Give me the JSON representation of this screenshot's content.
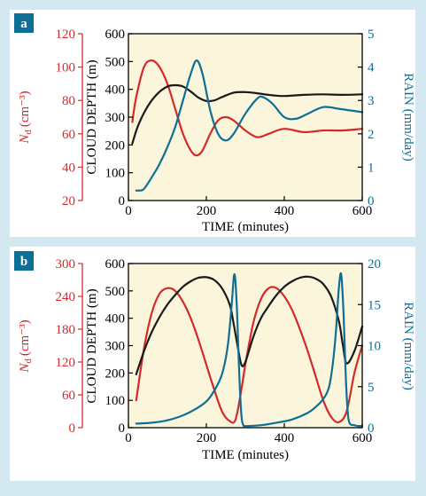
{
  "colors": {
    "nd": "#d42a2a",
    "depth": "#1a1a1a",
    "rain": "#0e6f96",
    "badge": "#0e6f96",
    "plot_bg": "#fbf5dc",
    "page_bg": "#d4e8f2"
  },
  "chart_data": [
    {
      "panel_label": "a",
      "type": "line",
      "xlabel": "TIME (minutes)",
      "ylabel_left_outer_italic": "N",
      "ylabel_left_outer_sub": "d",
      "ylabel_left_outer_unit": "(cm⁻³)",
      "ylabel_left_inner": "CLOUD DEPTH (m)",
      "ylabel_right": "RAIN (mm/day)",
      "xlim": [
        0,
        600
      ],
      "xticks": [
        "0",
        "200",
        "400",
        "600"
      ],
      "depth_lim": [
        0,
        600
      ],
      "depth_ticks": [
        "0",
        "100",
        "200",
        "300",
        "400",
        "500",
        "600"
      ],
      "nd_lim": [
        20,
        120
      ],
      "nd_ticks": [
        "20",
        "40",
        "60",
        "80",
        "100",
        "120"
      ],
      "rain_lim": [
        0,
        5
      ],
      "rain_ticks": [
        "0",
        "1",
        "2",
        "3",
        "4",
        "5"
      ],
      "series": [
        {
          "axis": "nd",
          "color": "#d42a2a",
          "x": [
            10,
            20,
            40,
            60,
            80,
            100,
            120,
            140,
            160,
            175,
            190,
            210,
            230,
            250,
            270,
            300,
            330,
            360,
            400,
            450,
            500,
            550,
            600
          ],
          "values": [
            67,
            82,
            100,
            104,
            100,
            90,
            75,
            60,
            50,
            47,
            50,
            60,
            68,
            70,
            68,
            62,
            58,
            60,
            63,
            61,
            62,
            62,
            63
          ]
        },
        {
          "axis": "depth",
          "color": "#1a1a1a",
          "x": [
            10,
            25,
            50,
            75,
            100,
            120,
            140,
            160,
            180,
            200,
            220,
            240,
            270,
            300,
            330,
            360,
            400,
            450,
            500,
            550,
            600
          ],
          "values": [
            205,
            270,
            340,
            385,
            410,
            415,
            410,
            392,
            370,
            358,
            360,
            372,
            388,
            390,
            386,
            380,
            376,
            380,
            382,
            380,
            382
          ]
        },
        {
          "axis": "rain",
          "color": "#0e6f96",
          "x": [
            20,
            30,
            40,
            60,
            80,
            100,
            120,
            140,
            160,
            175,
            190,
            210,
            230,
            250,
            270,
            300,
            330,
            345,
            370,
            400,
            430,
            460,
            500,
            540,
            570,
            600
          ],
          "values": [
            0.3,
            0.3,
            0.35,
            0.7,
            1.1,
            1.6,
            2.2,
            3.0,
            3.8,
            4.2,
            3.8,
            2.7,
            2.0,
            1.8,
            2.0,
            2.6,
            3.05,
            3.1,
            2.9,
            2.5,
            2.45,
            2.6,
            2.8,
            2.75,
            2.7,
            2.65
          ]
        }
      ]
    },
    {
      "panel_label": "b",
      "type": "line",
      "xlabel": "TIME (minutes)",
      "ylabel_left_outer_italic": "N",
      "ylabel_left_outer_sub": "d",
      "ylabel_left_outer_unit": "(cm⁻³)",
      "ylabel_left_inner": "CLOUD DEPTH (m)",
      "ylabel_right": "RAIN (mm/day)",
      "xlim": [
        0,
        600
      ],
      "xticks": [
        "0",
        "200",
        "400",
        "600"
      ],
      "depth_lim": [
        0,
        600
      ],
      "depth_ticks": [
        "0",
        "100",
        "200",
        "300",
        "400",
        "500",
        "600"
      ],
      "nd_lim": [
        0,
        300
      ],
      "nd_ticks": [
        "0",
        "60",
        "120",
        "180",
        "240",
        "300"
      ],
      "rain_lim": [
        0,
        20
      ],
      "rain_ticks": [
        "0",
        "5",
        "10",
        "15",
        "20"
      ],
      "series": [
        {
          "axis": "nd",
          "color": "#d42a2a",
          "x": [
            20,
            40,
            60,
            80,
            100,
            120,
            140,
            160,
            180,
            200,
            220,
            240,
            260,
            275,
            290,
            300,
            320,
            340,
            360,
            380,
            400,
            420,
            440,
            460,
            480,
            500,
            520,
            540,
            560,
            580,
            600
          ],
          "values": [
            50,
            145,
            210,
            245,
            255,
            250,
            230,
            200,
            160,
            115,
            70,
            30,
            12,
            15,
            70,
            115,
            190,
            235,
            255,
            255,
            240,
            215,
            180,
            140,
            95,
            50,
            20,
            10,
            30,
            100,
            150
          ]
        },
        {
          "axis": "depth",
          "color": "#1a1a1a",
          "x": [
            20,
            40,
            60,
            80,
            100,
            120,
            140,
            160,
            180,
            200,
            220,
            240,
            260,
            270,
            280,
            290,
            300,
            320,
            340,
            360,
            380,
            400,
            420,
            440,
            460,
            480,
            500,
            520,
            540,
            550,
            560,
            580,
            600
          ],
          "values": [
            195,
            280,
            350,
            405,
            450,
            485,
            515,
            535,
            548,
            550,
            540,
            510,
            450,
            380,
            300,
            230,
            240,
            330,
            400,
            445,
            485,
            515,
            535,
            548,
            552,
            545,
            525,
            480,
            390,
            305,
            235,
            280,
            370
          ]
        },
        {
          "axis": "rain",
          "color": "#0e6f96",
          "x": [
            20,
            60,
            100,
            140,
            170,
            200,
            220,
            240,
            255,
            265,
            272,
            278,
            284,
            290,
            295,
            300,
            310,
            340,
            380,
            420,
            460,
            480,
            500,
            515,
            525,
            533,
            540,
            546,
            552,
            558,
            565,
            580,
            600
          ],
          "values": [
            0.5,
            0.6,
            0.9,
            1.5,
            2.2,
            3.2,
            4.5,
            6.5,
            10,
            15,
            18.7,
            15,
            7,
            1.5,
            0.3,
            0.2,
            0.2,
            0.3,
            0.6,
            1.0,
            1.8,
            2.5,
            3.5,
            5,
            8,
            12,
            17,
            18.7,
            14,
            6,
            1.0,
            0.3,
            0.2
          ]
        }
      ]
    }
  ]
}
